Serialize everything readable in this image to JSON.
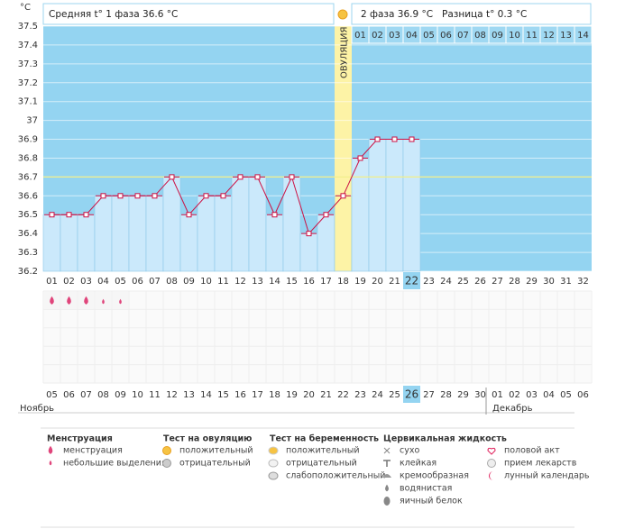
{
  "chart_data": {
    "type": "line",
    "y_label": "°C",
    "categories": [
      "01",
      "02",
      "03",
      "04",
      "05",
      "06",
      "07",
      "08",
      "09",
      "10",
      "11",
      "12",
      "13",
      "14",
      "15",
      "16",
      "17",
      "18",
      "19",
      "20",
      "21",
      "22",
      "23",
      "24",
      "25",
      "26",
      "27",
      "28",
      "29",
      "30",
      "31",
      "32"
    ],
    "series": [
      {
        "name": "t°",
        "color": "#cc1144",
        "values": [
          36.5,
          36.5,
          36.5,
          36.6,
          36.6,
          36.6,
          36.6,
          36.7,
          36.5,
          36.6,
          36.6,
          36.7,
          36.7,
          36.5,
          36.7,
          36.4,
          36.5,
          36.6,
          36.8,
          36.9,
          36.9,
          36.9,
          null,
          null,
          null,
          null,
          null,
          null,
          null,
          null,
          null,
          null
        ]
      }
    ],
    "ylim": [
      36.2,
      37.5
    ],
    "yticks": [
      36.2,
      36.3,
      36.4,
      36.5,
      36.6,
      36.7,
      36.8,
      36.9,
      37,
      37.1,
      37.2,
      37.3,
      37.4,
      37.5
    ],
    "grid": true,
    "coverline": 36.7,
    "ovulation_label": "ОВУЛЯЦИЯ",
    "ovulation_index": 17,
    "highlight_index": 21,
    "phase2_days": [
      "01",
      "02",
      "03",
      "04",
      "05",
      "06",
      "07",
      "08",
      "09",
      "10",
      "11",
      "12",
      "13",
      "14"
    ]
  },
  "header": {
    "phase1": "Средняя t° 1 фаза 36.6 °C",
    "phase2": "2 фаза 36.9 °C",
    "difference": "Разница t° 0.3 °C"
  },
  "calendar": {
    "dates": [
      "05",
      "06",
      "07",
      "08",
      "09",
      "10",
      "11",
      "12",
      "13",
      "14",
      "15",
      "16",
      "17",
      "18",
      "19",
      "20",
      "21",
      "22",
      "23",
      "24",
      "25",
      "26",
      "27",
      "28",
      "29",
      "30",
      "01",
      "02",
      "03",
      "04",
      "05",
      "06"
    ],
    "weekend": [
      false,
      false,
      false,
      false,
      true,
      true,
      false,
      false,
      false,
      false,
      false,
      true,
      true,
      false,
      false,
      false,
      false,
      false,
      true,
      true,
      true,
      false,
      false,
      false,
      false,
      true,
      true,
      false,
      false,
      false,
      false,
      false
    ],
    "months": [
      "Ноябрь",
      "Декабрь"
    ],
    "month_break_index": 26
  },
  "symptoms": {
    "menstruation": [
      0,
      0,
      0,
      1,
      1
    ]
  },
  "legend": {
    "groups": [
      {
        "title": "Менструация",
        "items": [
          "менструация",
          "небольшие выделения"
        ]
      },
      {
        "title": "Тест на овуляцию",
        "items": [
          "положительный",
          "отрицательный"
        ]
      },
      {
        "title": "Тест на беременность",
        "items": [
          "положительный",
          "отрицательный",
          "слабоположительный"
        ]
      },
      {
        "title": "Цервикальная жидкость",
        "items": [
          "сухо",
          "клейкая",
          "кремообразная",
          "водянистая",
          "яичный белок"
        ]
      },
      {
        "title": null,
        "items": [
          "половой акт",
          "прием лекарств",
          "лунный календарь"
        ]
      }
    ]
  }
}
